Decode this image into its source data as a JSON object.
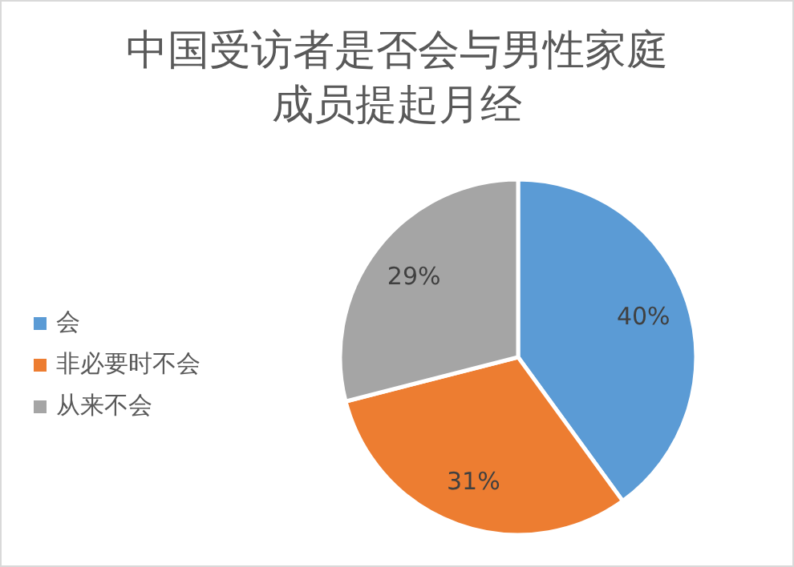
{
  "chart_data": {
    "type": "pie",
    "title": "中国受访者是否会与男性家庭成员提起月经",
    "categories": [
      "会",
      "非必要时不会",
      "从来不会"
    ],
    "values": [
      40,
      31,
      29
    ],
    "value_labels": [
      "40%",
      "31%",
      "29%"
    ],
    "colors": [
      "#5b9bd5",
      "#ed7d31",
      "#a5a5a5"
    ],
    "legend": "left"
  }
}
